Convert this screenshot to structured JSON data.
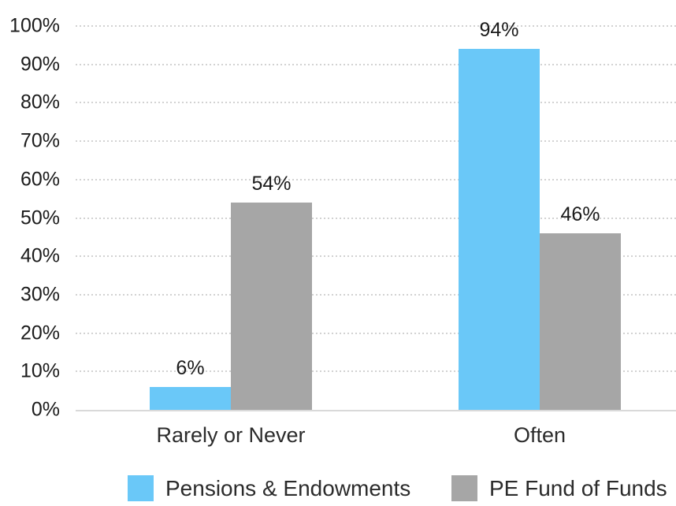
{
  "chart_data": {
    "type": "bar",
    "title": "",
    "categories": [
      "Rarely or Never",
      "Often"
    ],
    "series": [
      {
        "name": "Pensions & Endowments",
        "color": "#6AC8F8",
        "values": [
          6,
          94
        ]
      },
      {
        "name": "PE Fund of Funds",
        "color": "#A6A6A6",
        "values": [
          54,
          46
        ]
      }
    ],
    "data_labels": [
      [
        "6%",
        "94%"
      ],
      [
        "54%",
        "46%"
      ]
    ],
    "y_axis": {
      "min": 0,
      "max": 100,
      "step": 10,
      "tick_labels": [
        "0%",
        "10%",
        "20%",
        "30%",
        "40%",
        "50%",
        "60%",
        "70%",
        "80%",
        "90%",
        "100%"
      ],
      "grid_style": "dotted"
    },
    "legend_position": "bottom",
    "colors": {
      "gridline": "#D2D2D2",
      "axis_line": "#D9D9D9",
      "text": "#1B1B1B",
      "background": "#FFFFFF"
    }
  }
}
